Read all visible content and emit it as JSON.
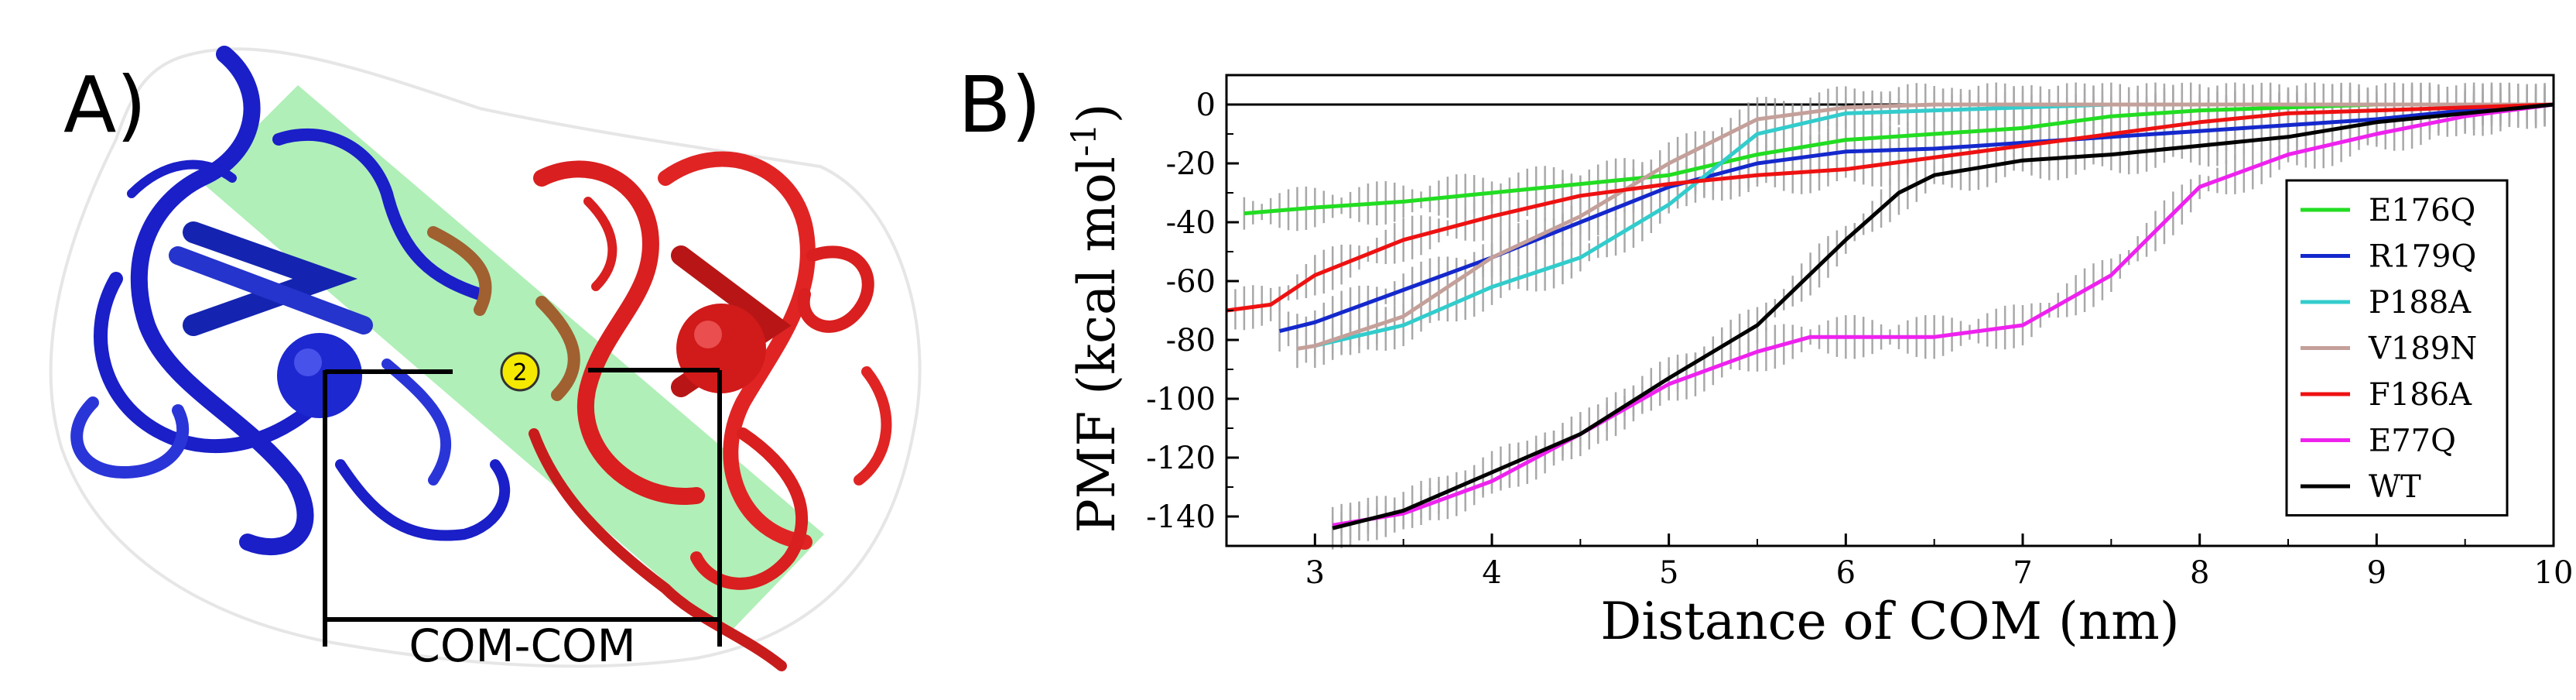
{
  "panel_a": {
    "label": "A)",
    "badge": "2",
    "com_label": "COM-COM",
    "colors": {
      "domain_left": "#1a1fc8",
      "domain_right": "#d91f1f",
      "interface_band": "#8fe89a",
      "badge": "#f5e900"
    }
  },
  "panel_b": {
    "label": "B)"
  },
  "chart_data": {
    "type": "line",
    "title": "",
    "xlabel": "Distance of COM (nm)",
    "ylabel": "PMF (kcal mol",
    "ylabel_sup": "-1",
    "ylabel_close": ")",
    "xlim": [
      2.5,
      10
    ],
    "ylim": [
      -150,
      10
    ],
    "xticks": [
      3,
      4,
      5,
      6,
      7,
      8,
      9,
      10
    ],
    "yticks": [
      0,
      -20,
      -40,
      -60,
      -80,
      -100,
      -120,
      -140
    ],
    "grid": false,
    "zero_line": true,
    "legend_position": "right",
    "error_bars": true,
    "series": [
      {
        "name": "E176Q",
        "color": "#22dd22",
        "x": [
          2.6,
          3.0,
          3.5,
          4.0,
          4.5,
          5.0,
          5.5,
          6.0,
          6.5,
          7.0,
          7.5,
          8.0,
          8.5,
          9.0,
          9.5,
          10.0
        ],
        "y": [
          -37,
          -35,
          -33,
          -30,
          -27,
          -24,
          -17,
          -12,
          -10,
          -8,
          -4,
          -2,
          -1,
          0,
          0,
          0
        ]
      },
      {
        "name": "R179Q",
        "color": "#1428cc",
        "x": [
          2.8,
          3.0,
          3.5,
          4.0,
          4.5,
          5.0,
          5.5,
          6.0,
          6.5,
          7.0,
          7.5,
          8.0,
          8.5,
          9.0,
          9.5,
          10.0
        ],
        "y": [
          -77,
          -74,
          -63,
          -52,
          -40,
          -28,
          -20,
          -16,
          -15,
          -13,
          -11,
          -9,
          -7,
          -5,
          -2,
          0
        ]
      },
      {
        "name": "P188A",
        "color": "#33cccc",
        "x": [
          3.0,
          3.5,
          4.0,
          4.5,
          5.0,
          5.5,
          6.0,
          6.5,
          7.0,
          7.5,
          8.0,
          8.5,
          9.0,
          9.5,
          10.0
        ],
        "y": [
          -82,
          -75,
          -62,
          -52,
          -34,
          -10,
          -3,
          -2,
          -1,
          0,
          0,
          0,
          0,
          0,
          0
        ]
      },
      {
        "name": "V189N",
        "color": "#c4a09a",
        "x": [
          2.9,
          3.0,
          3.5,
          4.0,
          4.5,
          5.0,
          5.5,
          6.0,
          6.5,
          7.0,
          7.5,
          8.0,
          8.5,
          9.0,
          9.5,
          10.0
        ],
        "y": [
          -83,
          -82,
          -72,
          -52,
          -38,
          -20,
          -5,
          -1,
          0,
          0,
          0,
          0,
          0,
          0,
          0,
          0
        ]
      },
      {
        "name": "F186A",
        "color": "#ee1111",
        "x": [
          2.5,
          2.75,
          3.0,
          3.5,
          4.0,
          4.5,
          5.0,
          5.5,
          6.0,
          6.5,
          7.0,
          7.5,
          8.0,
          8.5,
          9.0,
          9.5,
          10.0
        ],
        "y": [
          -70,
          -68,
          -58,
          -46,
          -38,
          -31,
          -27,
          -24,
          -22,
          -18,
          -14,
          -10,
          -6,
          -3,
          -2,
          -1,
          0
        ]
      },
      {
        "name": "E77Q",
        "color": "#ee22ee",
        "x": [
          3.1,
          3.5,
          4.0,
          4.5,
          5.0,
          5.5,
          5.8,
          6.0,
          6.5,
          7.0,
          7.5,
          8.0,
          8.5,
          9.0,
          9.5,
          10.0
        ],
        "y": [
          -143,
          -139,
          -128,
          -112,
          -95,
          -84,
          -79,
          -79,
          -79,
          -75,
          -58,
          -28,
          -17,
          -10,
          -4,
          0
        ]
      },
      {
        "name": "WT",
        "color": "#000000",
        "x": [
          3.1,
          3.5,
          4.0,
          4.5,
          5.0,
          5.5,
          6.0,
          6.3,
          6.5,
          7.0,
          7.5,
          8.0,
          8.5,
          9.0,
          9.5,
          10.0
        ],
        "y": [
          -144,
          -138,
          -125,
          -112,
          -93,
          -75,
          -46,
          -30,
          -24,
          -19,
          -17,
          -14,
          -11,
          -6,
          -3,
          0
        ]
      }
    ]
  }
}
